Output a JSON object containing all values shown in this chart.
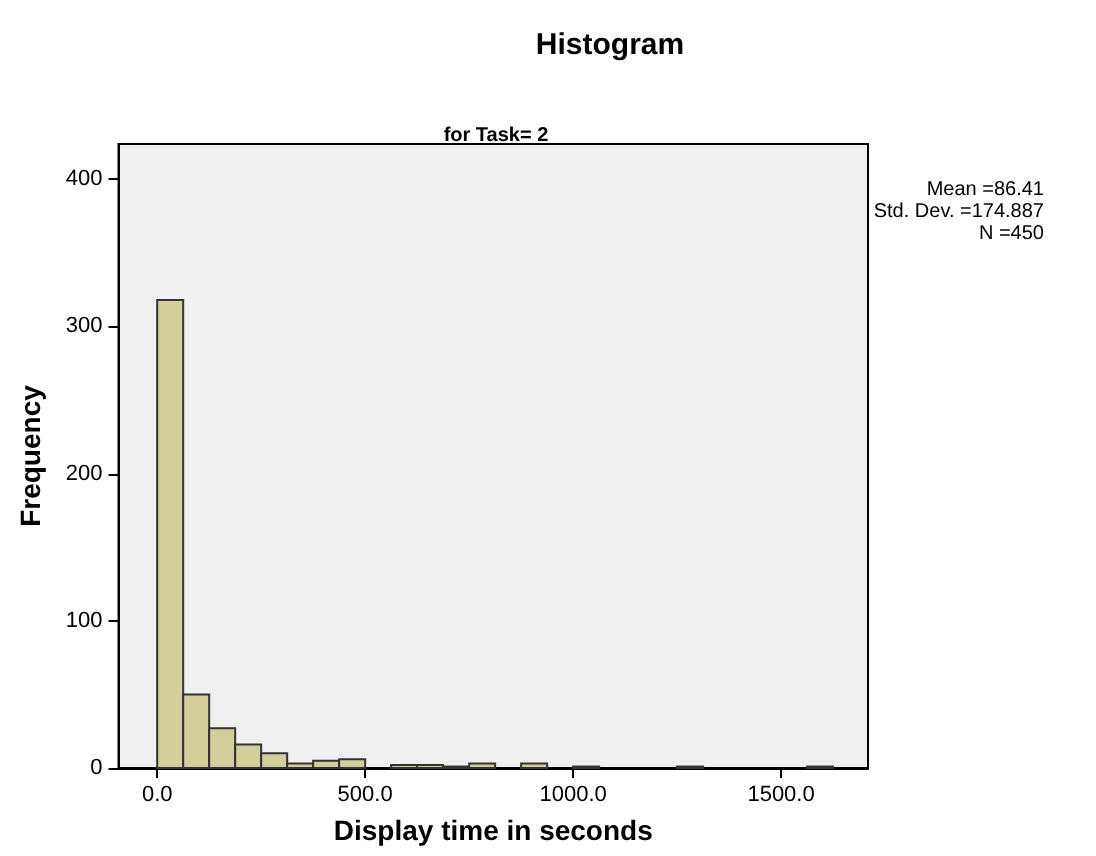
{
  "chart_data": {
    "type": "histogram",
    "title": "Histogram",
    "subtitle": "for Task= 2",
    "xlabel": "Display time in seconds",
    "ylabel": "Frequency",
    "bins": [
      0,
      62.5,
      125,
      187.5,
      250,
      312.5,
      375,
      437.5,
      500,
      562.5,
      625,
      687.5,
      750,
      812.5,
      875,
      937.5,
      1000,
      1062.5,
      1125,
      1187.5,
      1250,
      1312.5,
      1375,
      1437.5,
      1500,
      1562.5,
      1625
    ],
    "values": [
      318,
      50,
      27,
      16,
      10,
      3,
      5,
      6,
      0,
      2,
      2,
      1,
      3,
      0,
      3,
      0,
      1,
      0,
      0,
      0,
      1,
      0,
      0,
      0,
      0,
      1
    ],
    "color": "#d4cf9a",
    "xlim": [
      -93,
      1709
    ],
    "xticks": [
      {
        "value": 0,
        "label": "0.0"
      },
      {
        "value": 500,
        "label": "500.0"
      },
      {
        "value": 1000,
        "label": "1000.0"
      },
      {
        "value": 1500,
        "label": "1500.0"
      }
    ],
    "ylim": [
      0,
      424
    ],
    "yticks": [
      0,
      100,
      200,
      300,
      400
    ],
    "grid": false,
    "annotations": [
      "Mean =86.41",
      "Std. Dev. =174.887",
      "N =450"
    ]
  }
}
